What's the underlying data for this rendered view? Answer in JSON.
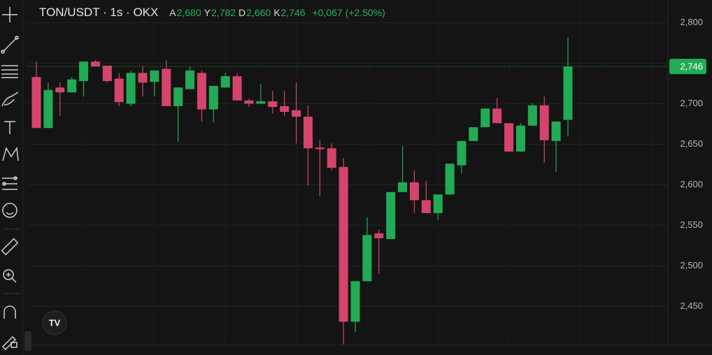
{
  "chart_data": {
    "type": "candlestick",
    "title": "TON/USDT · 1s · OKX",
    "ohlc_header": [
      {
        "key": "A",
        "value": 2680,
        "label": "2,680"
      },
      {
        "key": "Y",
        "value": 2782,
        "label": "2,782"
      },
      {
        "key": "D",
        "value": 2660,
        "label": "2,660"
      },
      {
        "key": "K",
        "value": 2746,
        "label": "2,746"
      }
    ],
    "change": "+0,067 (+2.50%)",
    "open": [
      2733,
      2670,
      2720,
      2714,
      2728,
      2752,
      2747,
      2731,
      2700,
      2738,
      2727,
      2743,
      2697,
      2718,
      2738,
      2693,
      2720,
      2734,
      2704,
      2700,
      2703,
      2697,
      2692,
      2684,
      2646,
      2645,
      2622,
      2431,
      2481,
      2540,
      2533,
      2591,
      2603,
      2581,
      2565,
      2588,
      2624,
      2654,
      2671,
      2694,
      2676,
      2641,
      2673,
      2698,
      2654,
      2680
    ],
    "high": [
      2752,
      2726,
      2726,
      2733,
      2752,
      2754,
      2747,
      2738,
      2741,
      2746,
      2741,
      2754,
      2720,
      2746,
      2741,
      2722,
      2738,
      2738,
      2706,
      2724,
      2716,
      2716,
      2726,
      2698,
      2655,
      2651,
      2633,
      2481,
      2560,
      2545,
      2591,
      2648,
      2618,
      2605,
      2588,
      2626,
      2654,
      2671,
      2694,
      2707,
      2676,
      2676,
      2701,
      2709,
      2678,
      2782
    ],
    "low": [
      2670,
      2670,
      2685,
      2714,
      2709,
      2746,
      2726,
      2697,
      2697,
      2709,
      2709,
      2697,
      2653,
      2718,
      2678,
      2677,
      2720,
      2704,
      2696,
      2700,
      2688,
      2685,
      2651,
      2599,
      2586,
      2618,
      2403,
      2418,
      2481,
      2490,
      2533,
      2591,
      2565,
      2565,
      2556,
      2588,
      2614,
      2654,
      2671,
      2676,
      2641,
      2640,
      2673,
      2627,
      2616,
      2660
    ],
    "close": [
      2670,
      2717,
      2714,
      2730,
      2752,
      2746,
      2728,
      2702,
      2738,
      2726,
      2741,
      2697,
      2720,
      2741,
      2693,
      2722,
      2734,
      2704,
      2700,
      2703,
      2696,
      2690,
      2684,
      2645,
      2644,
      2621,
      2431,
      2481,
      2538,
      2534,
      2591,
      2603,
      2581,
      2565,
      2588,
      2626,
      2654,
      2671,
      2694,
      2676,
      2641,
      2673,
      2698,
      2655,
      2678,
      2746
    ],
    "up_color": "#22ab55",
    "down_color": "#d5456b",
    "ylim": [
      2402,
      2828
    ],
    "yticks": [
      {
        "value": 2450,
        "label": "2,450"
      },
      {
        "value": 2500,
        "label": "2,500"
      },
      {
        "value": 2550,
        "label": "2,550"
      },
      {
        "value": 2600,
        "label": "2,600"
      },
      {
        "value": 2650,
        "label": "2,650"
      },
      {
        "value": 2700,
        "label": "2,700"
      },
      {
        "value": 2750,
        "label": "2,750"
      },
      {
        "value": 2800,
        "label": "2,800"
      }
    ],
    "price_label": {
      "value": 2746,
      "label": "2,746"
    },
    "grid": true
  }
}
